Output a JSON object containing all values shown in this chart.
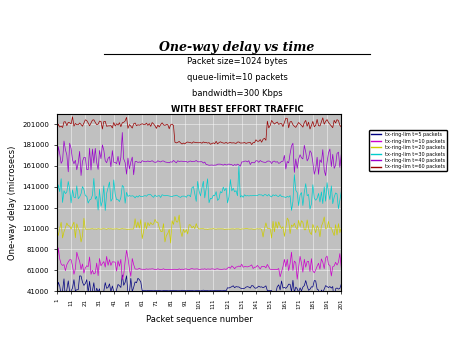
{
  "title": "One-way delay vs time",
  "subtitle_lines": [
    "Packet size=1024 bytes",
    "queue-limit=10 packets",
    "bandwidth=300 Kbps",
    "WITH BEST EFFORT TRAFFIC"
  ],
  "xlabel": "Packet sequence number",
  "ylabel": "One-way delay (microsecs)",
  "ylim": [
    41000,
    211000
  ],
  "yticks": [
    41000,
    61000,
    81000,
    101000,
    121000,
    141000,
    161000,
    181000,
    201000
  ],
  "n_packets": 201,
  "bg_color": "#c0c0c0",
  "colors": [
    "#000080",
    "#cc00cc",
    "#cccc00",
    "#00cccc",
    "#9900cc",
    "#990000"
  ],
  "labels": [
    "tx-ring-lim t=5 packets",
    "tx-ring-lim t=10 packets",
    "tx-ring-lim t=20 packets",
    "tx-ring-lim t=30 packets",
    "tx-ring-lim t=40 packets",
    "tx-ring-lim t=60 packets"
  ],
  "figsize": [
    4.74,
    3.55
  ],
  "dpi": 100
}
